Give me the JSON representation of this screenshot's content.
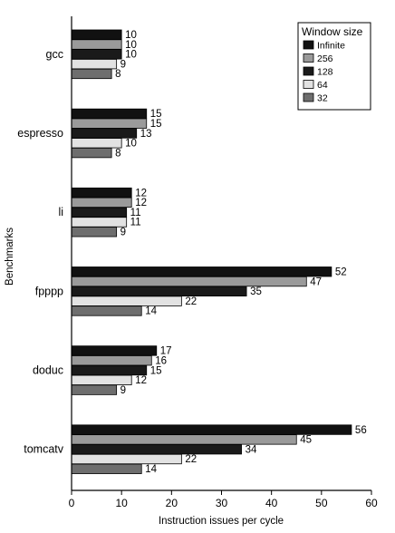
{
  "chart_data": {
    "type": "bar",
    "orientation": "horizontal",
    "title": "",
    "xlabel": "Instruction issues per cycle",
    "ylabel": "Benchmarks",
    "xlim": [
      0,
      60
    ],
    "xticks": [
      "0",
      "10",
      "20",
      "30",
      "40",
      "50",
      "60"
    ],
    "grid": false,
    "legend_title": "Window size",
    "legend_position": "top-right",
    "categories": [
      "gcc",
      "espresso",
      "li",
      "fpppp",
      "doduc",
      "tomcatv"
    ],
    "series": [
      {
        "name": "Infinite",
        "color": "#111111",
        "values": [
          10,
          15,
          12,
          52,
          17,
          56
        ]
      },
      {
        "name": "256",
        "color": "#9a9a9a",
        "values": [
          10,
          15,
          12,
          47,
          16,
          45
        ]
      },
      {
        "name": "128",
        "color": "#1a1a1a",
        "values": [
          10,
          13,
          11,
          35,
          15,
          34
        ]
      },
      {
        "name": "64",
        "color": "#e2e2e2",
        "values": [
          9,
          10,
          11,
          22,
          12,
          22
        ]
      },
      {
        "name": "32",
        "color": "#6e6e6e",
        "values": [
          8,
          8,
          9,
          14,
          9,
          14
        ]
      }
    ]
  }
}
